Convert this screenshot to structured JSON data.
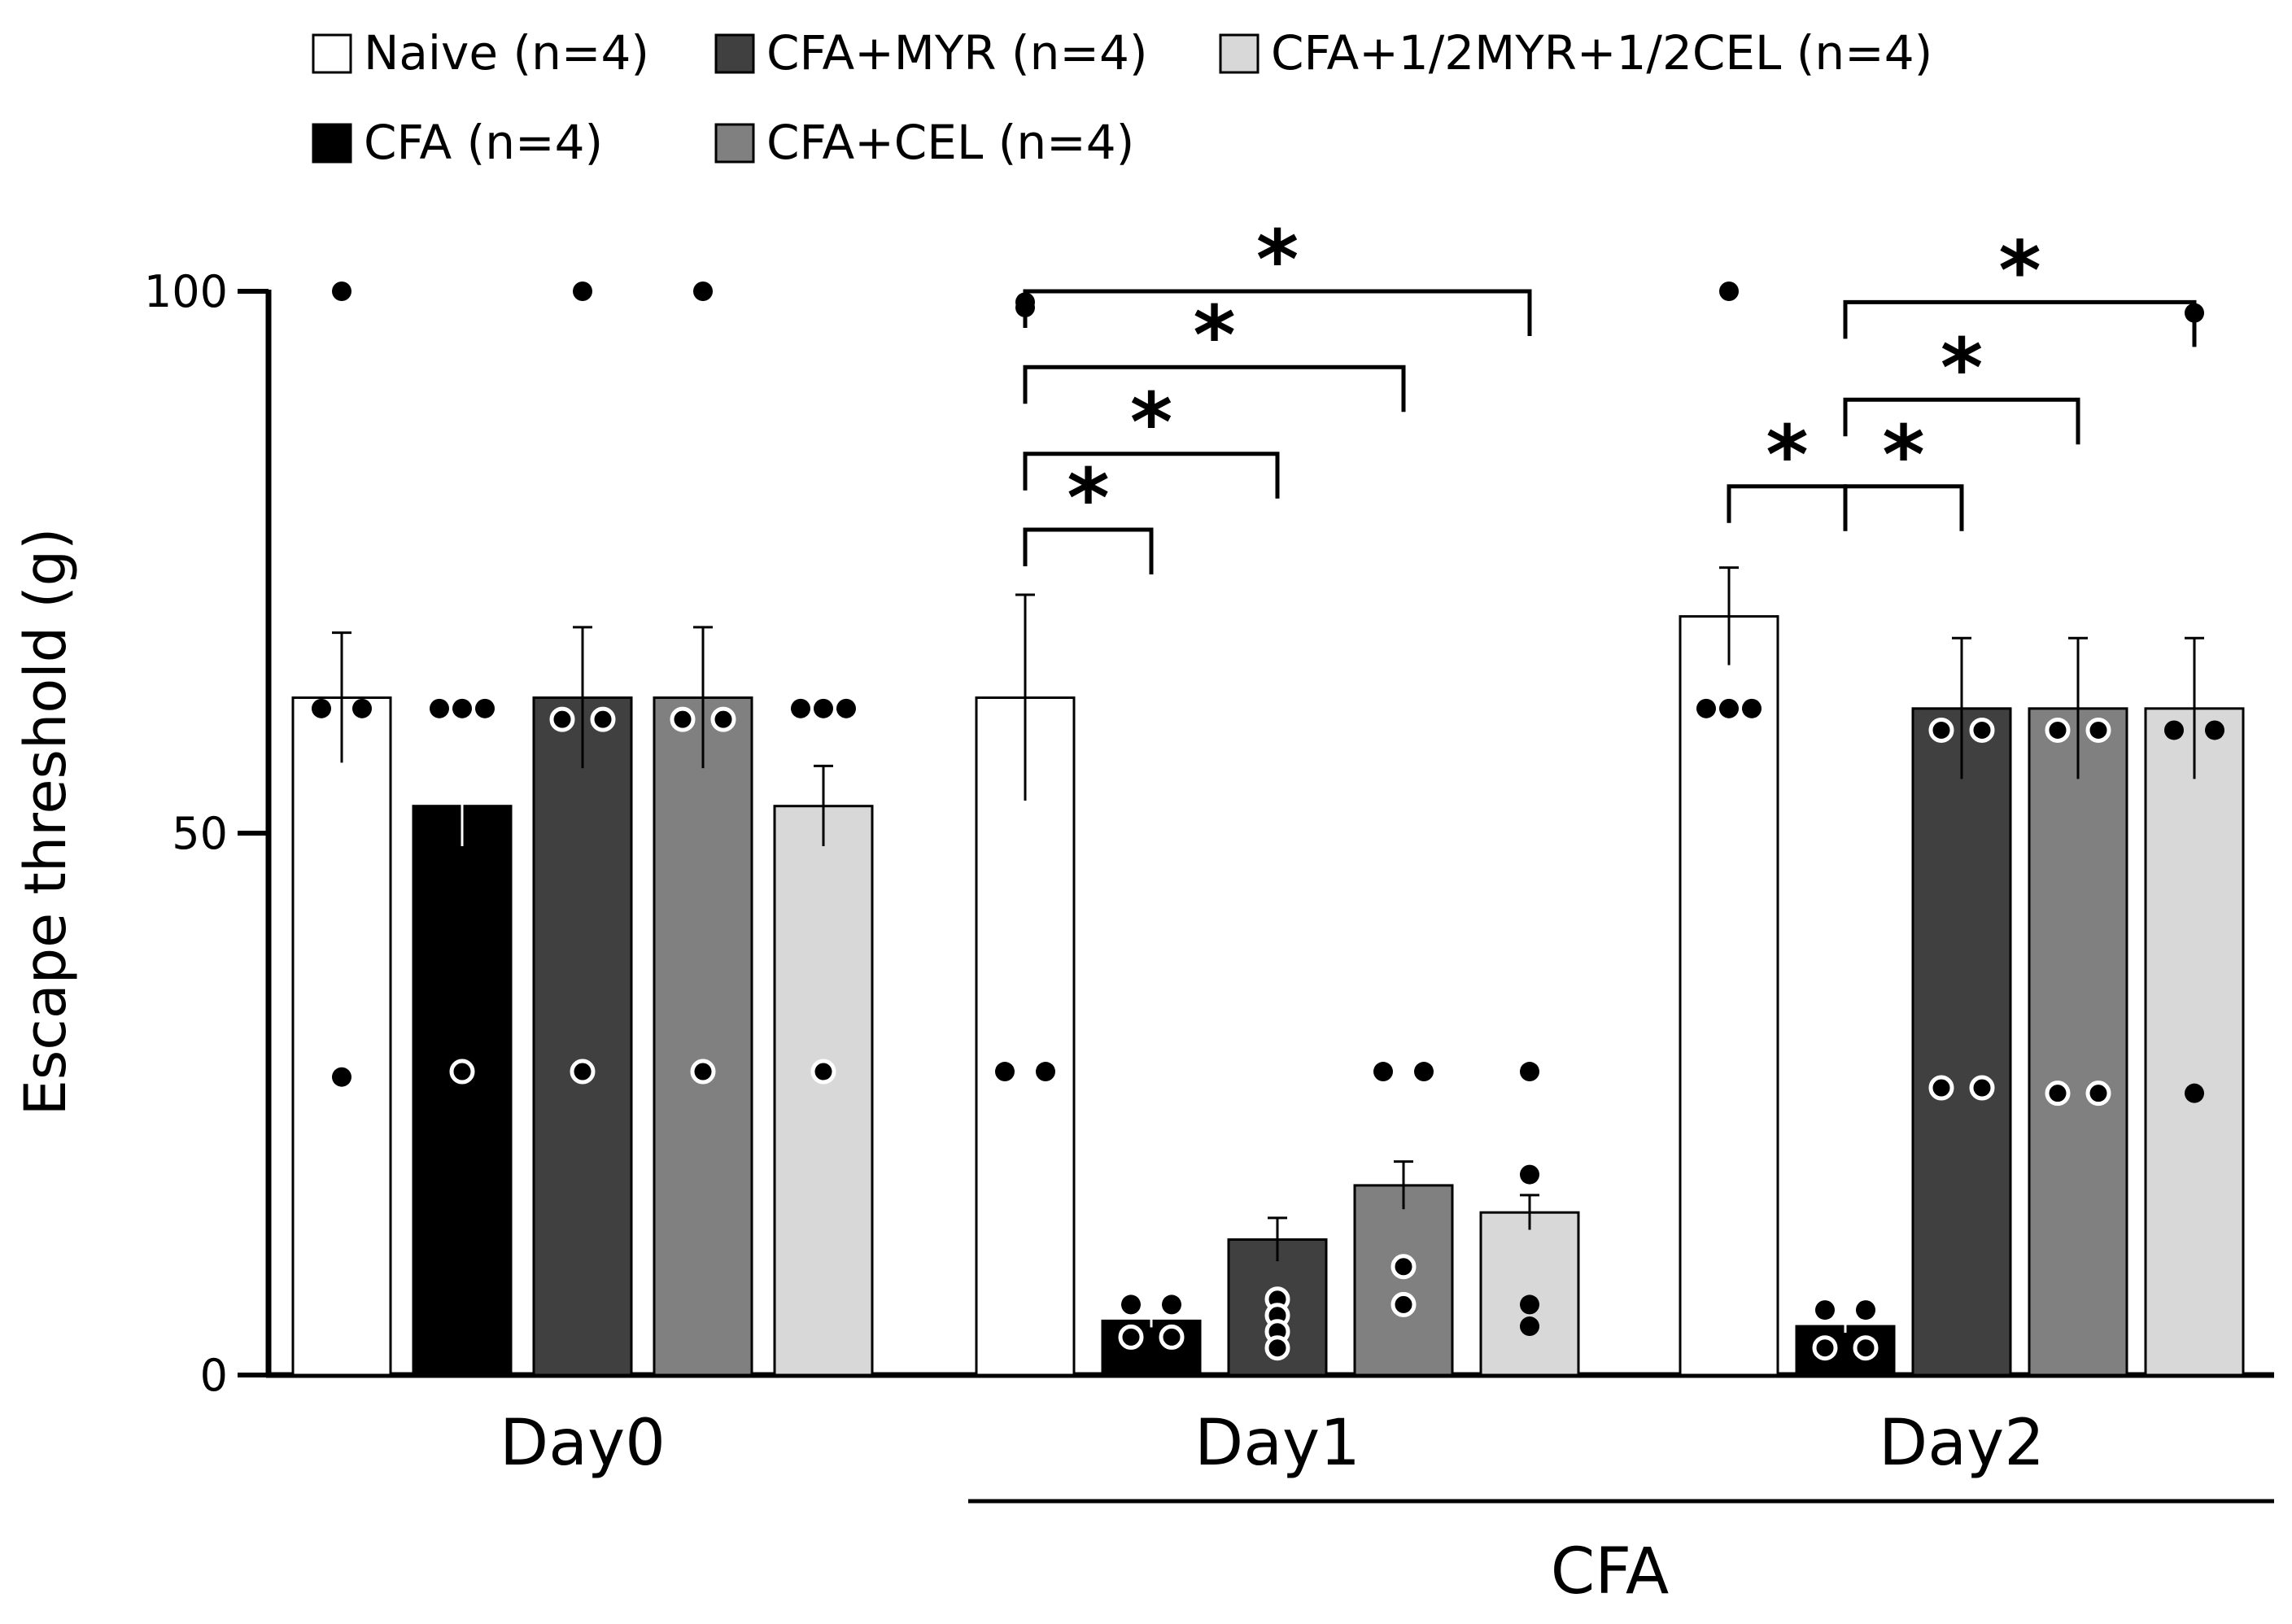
{
  "chart_data": {
    "type": "bar",
    "title": "",
    "ylabel": "Escape threshold (g)",
    "xlabel": "",
    "ylim": [
      0,
      100
    ],
    "yticks": [
      0,
      50,
      100
    ],
    "groups": [
      "Day0",
      "Day1",
      "Day2"
    ],
    "bracket_label": "CFA",
    "bracket_groups": [
      "Day1",
      "Day2"
    ],
    "legend_position": "top-left",
    "series": [
      {
        "name": "Naive (n=4)",
        "color": "#ffffff",
        "values": [
          62.5,
          62.5,
          70.0
        ],
        "sem": [
          6.0,
          9.5,
          4.5
        ],
        "points": [
          [
            100,
            61.5,
            61.5,
            27.5
          ],
          [
            99,
            98.5,
            28,
            28
          ],
          [
            100,
            61.5,
            61.5,
            61.5
          ]
        ]
      },
      {
        "name": "CFA (n=4)",
        "color": "#000000",
        "values": [
          52.5,
          5.0,
          4.5
        ],
        "sem": [
          3.7,
          0.6,
          0.6
        ],
        "points": [
          [
            61.5,
            61.5,
            61.5,
            28
          ],
          [
            6.5,
            6.5,
            3.5,
            3.5
          ],
          [
            6,
            6,
            2.5,
            2.5
          ]
        ]
      },
      {
        "name": "CFA+MYR (n=4)",
        "color": "#404040",
        "values": [
          62.5,
          12.5,
          61.5
        ],
        "sem": [
          6.5,
          2.0,
          6.5
        ],
        "points": [
          [
            100,
            60.5,
            60.5,
            28
          ],
          [
            7,
            5.5,
            4,
            2.5
          ],
          [
            59.5,
            59.5,
            26.5,
            26.5
          ]
        ]
      },
      {
        "name": "CFA+CEL (n=4)",
        "color": "#808080",
        "values": [
          62.5,
          17.5,
          61.5
        ],
        "sem": [
          6.5,
          2.2,
          6.5
        ],
        "points": [
          [
            100,
            60.5,
            60.5,
            28
          ],
          [
            28,
            28,
            10,
            6.5
          ],
          [
            59.5,
            59.5,
            26,
            26
          ]
        ]
      },
      {
        "name": "CFA+1/2MYR+1/2CEL (n=4)",
        "color": "#d8d8d8",
        "values": [
          52.5,
          15.0,
          61.5
        ],
        "sem": [
          3.7,
          1.6,
          6.5
        ],
        "points": [
          [
            61.5,
            61.5,
            61.5,
            28
          ],
          [
            28,
            18.5,
            6.5,
            4.5
          ],
          [
            98,
            59.5,
            59.5,
            26
          ]
        ]
      }
    ],
    "significance": [
      {
        "group": "Day1",
        "from": 0,
        "to": 1,
        "label": "*",
        "level": 78
      },
      {
        "group": "Day1",
        "from": 0,
        "to": 2,
        "label": "*",
        "level": 85
      },
      {
        "group": "Day1",
        "from": 0,
        "to": 3,
        "label": "*",
        "level": 93
      },
      {
        "group": "Day1",
        "from": 0,
        "to": 4,
        "label": "*",
        "level": 100
      },
      {
        "group": "Day2",
        "from": 0,
        "to": 1,
        "label": "*",
        "level": 82
      },
      {
        "group": "Day2",
        "from": 1,
        "to": 2,
        "label": "*",
        "level": 82
      },
      {
        "group": "Day2",
        "from": 1,
        "to": 3,
        "label": "*",
        "level": 90
      },
      {
        "group": "Day2",
        "from": 1,
        "to": 4,
        "label": "*",
        "level": 99
      }
    ]
  }
}
